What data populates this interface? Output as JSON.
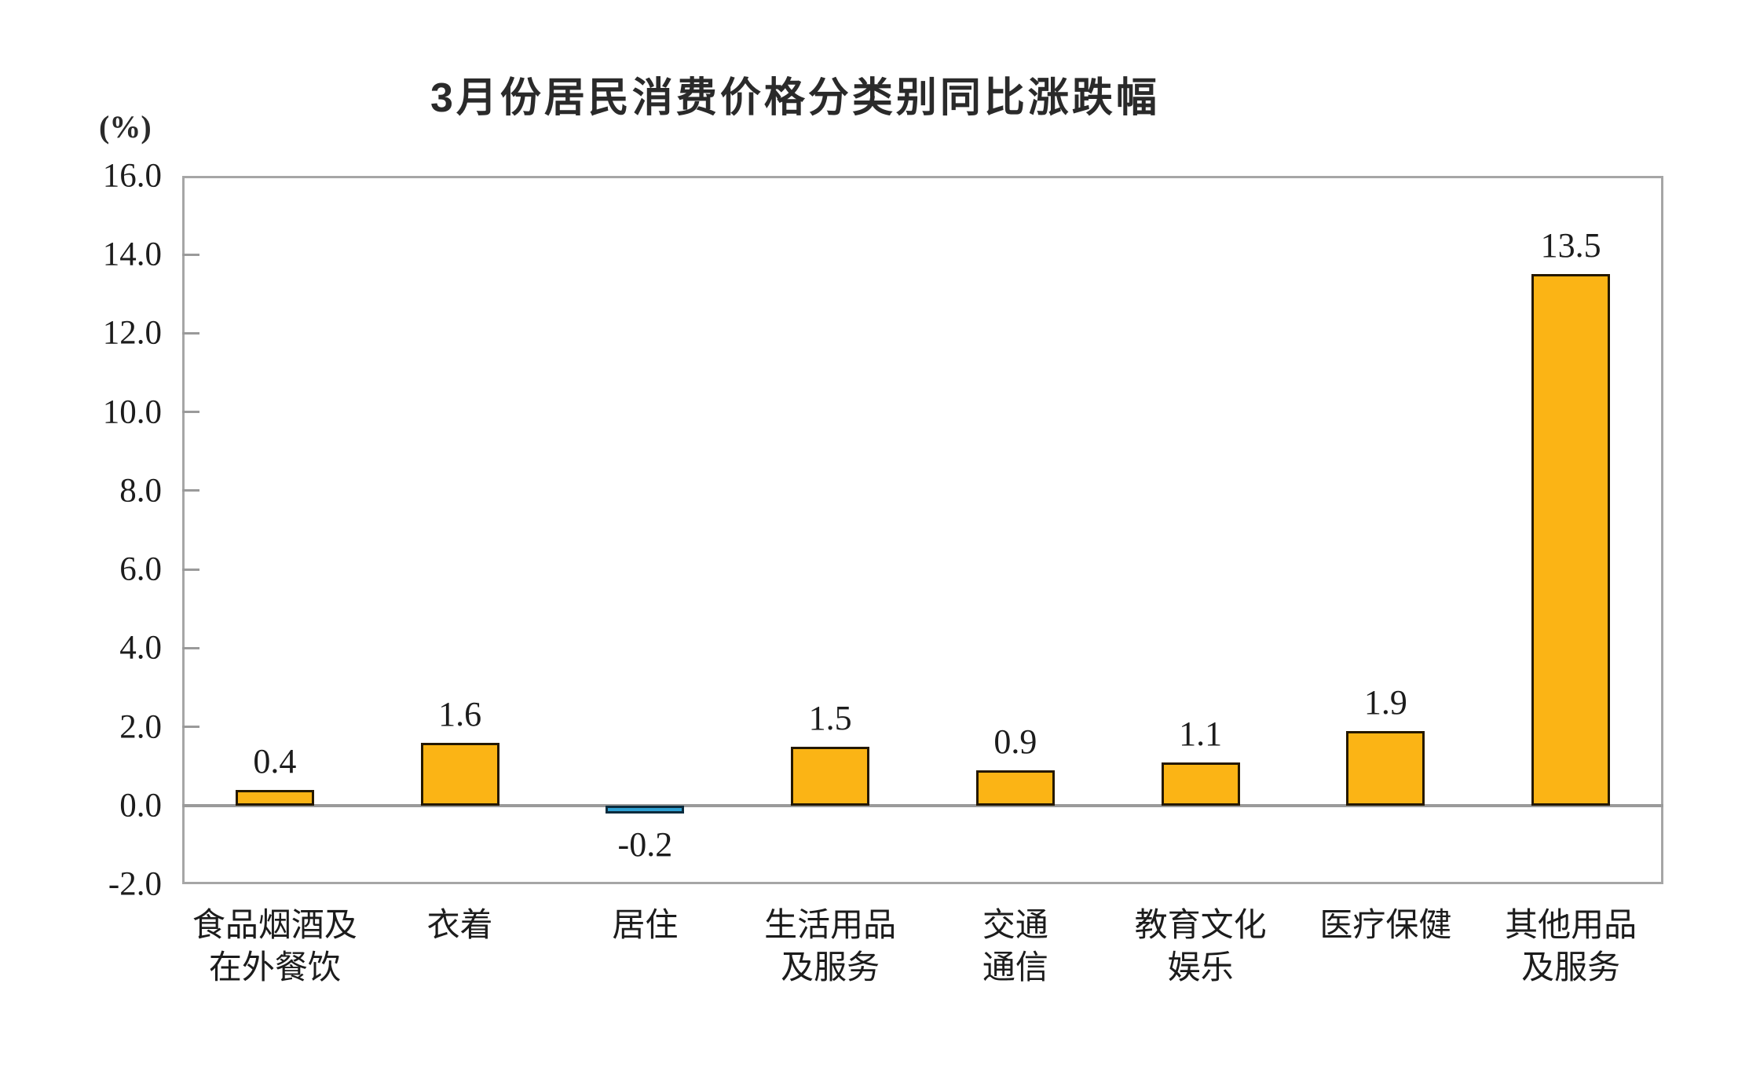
{
  "unit_label": "(%)",
  "colors": {
    "bar_positive_fill": "#FBB415",
    "bar_positive_border": "#241800",
    "bar_negative_fill": "#2FA0D2",
    "bar_negative_border": "#0C2B3D",
    "axis_gray": "#9a9a9a",
    "text": "#1c1c1c"
  },
  "chart_data": {
    "type": "bar",
    "title": "3月份居民消费价格分类别同比涨跌幅",
    "xlabel": "",
    "ylabel": "(%)",
    "categories": [
      "食品烟酒及\n在外餐饮",
      "衣着",
      "居住",
      "生活用品\n及服务",
      "交通\n通信",
      "教育文化\n娱乐",
      "医疗保健",
      "其他用品\n及服务"
    ],
    "values": [
      0.4,
      1.6,
      -0.2,
      1.5,
      0.9,
      1.1,
      1.9,
      13.5
    ],
    "value_labels": [
      "0.4",
      "1.6",
      "-0.2",
      "1.5",
      "0.9",
      "1.1",
      "1.9",
      "13.5"
    ],
    "ylim": [
      -2.0,
      16.0
    ],
    "ytick_step": 2.0,
    "yticks": [
      "16.0",
      "14.0",
      "12.0",
      "10.0",
      "8.0",
      "6.0",
      "4.0",
      "2.0",
      "0.0",
      "-2.0"
    ],
    "grid": false,
    "legend": false
  }
}
